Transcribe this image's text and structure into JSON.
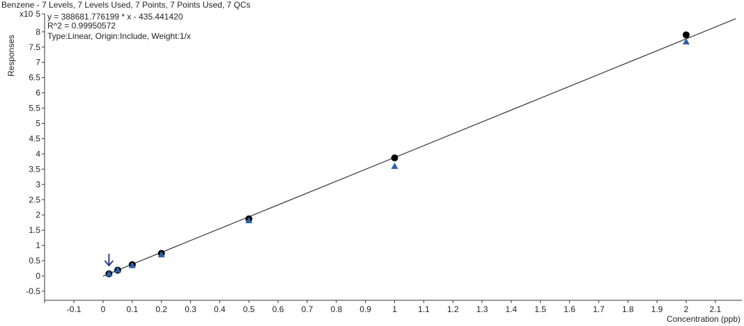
{
  "chart_data": {
    "type": "scatter",
    "title": "Benzene - 7 Levels, 7 Levels Used, 7 Points, 7 Points Used, 7 QCs",
    "equation": "y = 388681.776199 * x  - 435.441420",
    "r_squared": "R^2 = 0.99950572",
    "fit_info": "Type:Linear, Origin:Include, Weight:1/x",
    "xlabel": "Concentration (ppb)",
    "ylabel": "Responses",
    "y_multiplier": "x10",
    "y_multiplier_exp": "5",
    "xlim": [
      -0.2,
      2.19
    ],
    "ylim": [
      -0.8,
      8.5
    ],
    "x_ticks": [
      -0.1,
      0,
      0.1,
      0.2,
      0.3,
      0.4,
      0.5,
      0.6,
      0.7,
      0.8,
      0.9,
      1,
      1.1,
      1.2,
      1.3,
      1.4,
      1.5,
      1.6,
      1.7,
      1.8,
      1.9,
      2,
      2.1
    ],
    "y_ticks": [
      -0.5,
      0,
      0.5,
      1,
      1.5,
      2,
      2.5,
      3,
      3.5,
      4,
      4.5,
      5,
      5.5,
      6,
      6.5,
      7,
      7.5,
      8
    ],
    "grid": false,
    "fit_line": {
      "slope": 3.88681776199,
      "intercept": -0.0043544142,
      "x_range": [
        0,
        2.17
      ]
    },
    "series": [
      {
        "marker": "circle",
        "color": "#000000",
        "x": [
          0.02,
          0.05,
          0.1,
          0.2,
          0.5,
          1,
          2
        ],
        "y": [
          0.07,
          0.19,
          0.37,
          0.74,
          1.87,
          3.87,
          7.9
        ]
      },
      {
        "marker": "triangle",
        "color": "#2e5fa8",
        "x": [
          0.02,
          0.05,
          0.1,
          0.2,
          0.5,
          1,
          2
        ],
        "y": [
          0.08,
          0.2,
          0.35,
          0.7,
          1.82,
          3.6,
          7.68
        ]
      }
    ],
    "annotation": {
      "type": "arrow-down",
      "x": 0.02,
      "color": "#2e3f8f"
    }
  }
}
